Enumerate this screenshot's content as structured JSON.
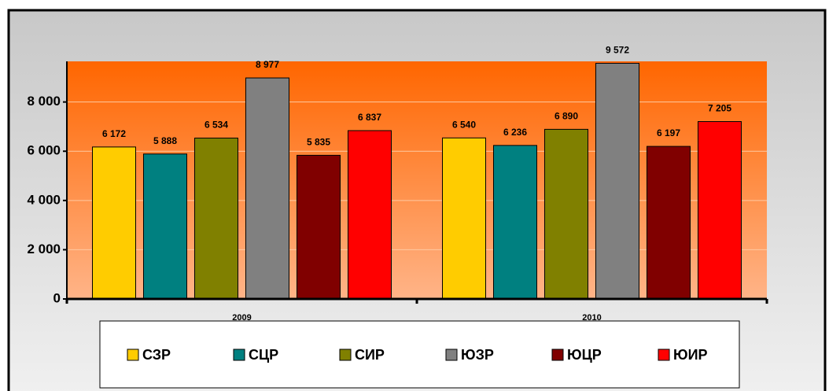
{
  "chart_data": {
    "type": "bar",
    "categories": [
      "2009",
      "2010"
    ],
    "series": [
      {
        "name": "СЗР",
        "color": "#ffcc00",
        "values": [
          6172,
          6540
        ],
        "value_labels": [
          "6 172",
          "6 540"
        ]
      },
      {
        "name": "СЦР",
        "color": "#008080",
        "values": [
          5888,
          6236
        ],
        "value_labels": [
          "5 888",
          "6 236"
        ]
      },
      {
        "name": "СИР",
        "color": "#808000",
        "values": [
          6534,
          6890
        ],
        "value_labels": [
          "6 534",
          "6 890"
        ]
      },
      {
        "name": "ЮЗР",
        "color": "#808080",
        "values": [
          8977,
          9572
        ],
        "value_labels": [
          "8 977",
          "9 572"
        ]
      },
      {
        "name": "ЮЦР",
        "color": "#800000",
        "values": [
          5835,
          6197
        ],
        "value_labels": [
          "5 835",
          "6 197"
        ]
      },
      {
        "name": "ЮИР",
        "color": "#ff0000",
        "values": [
          6837,
          7205
        ],
        "value_labels": [
          "6 837",
          "7 205"
        ]
      }
    ],
    "ylim": [
      0,
      9650
    ],
    "yticks": [
      0,
      {
        "value": 2000,
        "label": "2 000"
      },
      {
        "value": 4000,
        "label": "4 000"
      },
      {
        "value": 6000,
        "label": "6 000"
      },
      {
        "value": 8000,
        "label": "8 000"
      }
    ],
    "grid": true,
    "legend": "bottom"
  }
}
